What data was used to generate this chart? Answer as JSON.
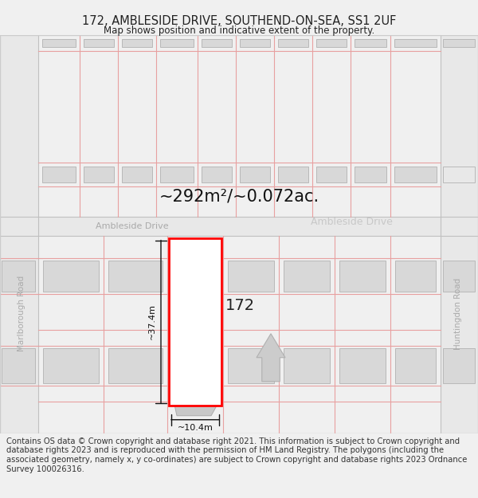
{
  "title_line1": "172, AMBLESIDE DRIVE, SOUTHEND-ON-SEA, SS1 2UF",
  "title_line2": "Map shows position and indicative extent of the property.",
  "area_text": "~292m²/~0.072ac.",
  "property_number": "172",
  "dim_height": "~37.4m",
  "dim_width": "~10.4m",
  "road_label_left": "Ambleside Drive",
  "road_label_center": "Ambleside Drive",
  "road_label_left2": "Marlborough Road",
  "road_label_right": "Huntingdon Road",
  "footer_text": "Contains OS data © Crown copyright and database right 2021. This information is subject to Crown copyright and database rights 2023 and is reproduced with the permission of HM Land Registry. The polygons (including the associated geometry, namely x, y co-ordinates) are subject to Crown copyright and database rights 2023 Ordnance Survey 100026316.",
  "bg_color": "#f0f0f0",
  "map_bg": "#ffffff",
  "road_color": "#e0e0e0",
  "building_fill": "#d8d8d8",
  "building_outline": "#b8b8b8",
  "pink_fill": "none",
  "plot_line_color": "#e8a0a0",
  "property_fill": "#ffffff",
  "property_outline": "#ff0000",
  "dim_color": "#111111",
  "road_text_color": "#aaaaaa",
  "text_color": "#222222",
  "footer_color": "#333333",
  "title_fontsize": 10.5,
  "subtitle_fontsize": 8.5,
  "area_fontsize": 15,
  "label_fontsize": 7,
  "footer_fontsize": 7.2
}
